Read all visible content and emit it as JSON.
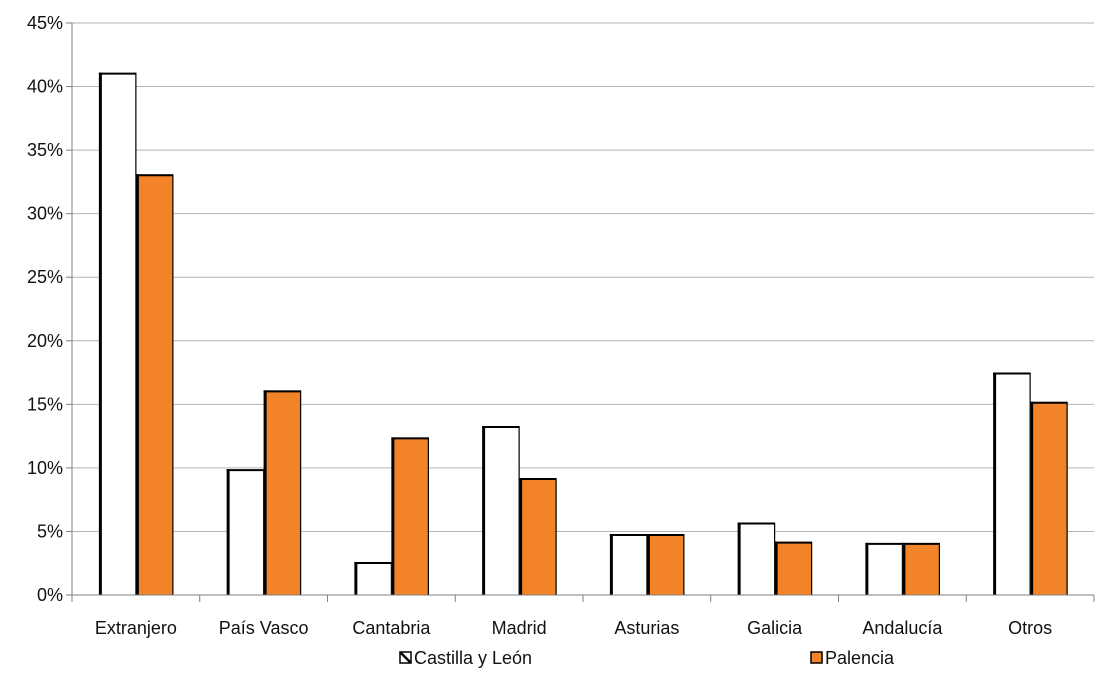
{
  "chart_data": {
    "type": "bar",
    "categories": [
      "Extranjero",
      "País Vasco",
      "Cantabria",
      "Madrid",
      "Asturias",
      "Galicia",
      "Andalucía",
      "Otros"
    ],
    "series": [
      {
        "name": "Castilla y León",
        "values": [
          41.1,
          9.9,
          2.6,
          13.3,
          4.8,
          5.7,
          4.1,
          17.5
        ]
      },
      {
        "name": "Palencia",
        "values": [
          33.1,
          16.1,
          12.4,
          9.2,
          4.8,
          4.2,
          4.1,
          15.2
        ]
      }
    ],
    "ylim": [
      0,
      45
    ],
    "yticks": [
      0,
      5,
      10,
      15,
      20,
      25,
      30,
      35,
      40,
      45
    ],
    "ytick_labels": [
      "0%",
      "5%",
      "10%",
      "15%",
      "20%",
      "25%",
      "30%",
      "35%",
      "40%",
      "45%"
    ],
    "title": "",
    "xlabel": "",
    "ylabel": "",
    "grid": true,
    "legend_position": "bottom",
    "colors": {
      "castilla_fill": "#ffffff",
      "castilla_edge": "#000000",
      "palencia_fill": "#f28329",
      "palencia_edge": "#000000",
      "grid": "#b3b3b3",
      "axis": "#808080"
    }
  }
}
